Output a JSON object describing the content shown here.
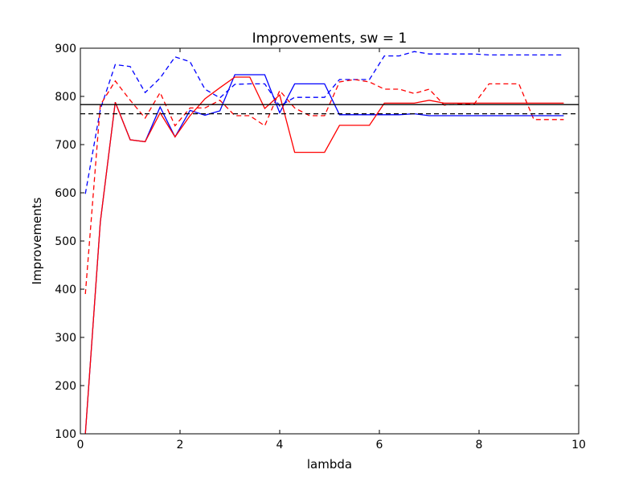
{
  "chart_data": {
    "type": "line",
    "title": "Improvements, sw = 1",
    "xlabel": "lambda",
    "ylabel": "Improvements",
    "xlim": [
      0,
      10
    ],
    "ylim": [
      100,
      900
    ],
    "xticks": [
      "0",
      "2",
      "4",
      "6",
      "8",
      "10"
    ],
    "yticks": [
      "100",
      "200",
      "300",
      "400",
      "500",
      "600",
      "700",
      "800",
      "900"
    ],
    "grid": false,
    "x": [
      0.1,
      0.4,
      0.7,
      1.0,
      1.3,
      1.6,
      1.9,
      2.2,
      2.5,
      2.8,
      3.1,
      3.4,
      3.7,
      4.0,
      4.3,
      4.6,
      4.9,
      5.2,
      5.5,
      5.8,
      6.1,
      6.4,
      6.7,
      7.0,
      7.3,
      7.6,
      7.9,
      8.2,
      8.5,
      8.8,
      9.1,
      9.4,
      9.7
    ],
    "series": [
      {
        "color": "#0000ff",
        "linestyle": "dashed",
        "values": [
          598,
          773,
          866,
          862,
          808,
          838,
          882,
          872,
          815,
          797,
          825,
          826,
          826,
          780,
          798,
          798,
          798,
          835,
          835,
          835,
          884,
          884,
          893,
          888,
          888,
          888,
          888,
          886,
          886,
          886,
          886,
          886,
          886
        ]
      },
      {
        "color": "#ff0000",
        "linestyle": "dashed",
        "values": [
          390,
          782,
          832,
          792,
          755,
          808,
          739,
          776,
          776,
          792,
          760,
          760,
          739,
          812,
          776,
          760,
          760,
          830,
          835,
          830,
          815,
          815,
          806,
          815,
          782,
          784,
          784,
          826,
          826,
          826,
          752,
          752,
          752
        ]
      },
      {
        "color": "#0000ff",
        "linestyle": "solid",
        "values": [
          100,
          539,
          788,
          710,
          706,
          778,
          716,
          771,
          761,
          770,
          845,
          845,
          845,
          766,
          826,
          826,
          826,
          762,
          762,
          762,
          762,
          762,
          764,
          760,
          760,
          760,
          760,
          760,
          760,
          760,
          760,
          760,
          760
        ]
      },
      {
        "color": "#ff0000",
        "linestyle": "solid",
        "values": [
          100,
          539,
          788,
          710,
          706,
          766,
          716,
          760,
          795,
          818,
          840,
          840,
          775,
          803,
          684,
          684,
          684,
          740,
          740,
          740,
          786,
          786,
          786,
          792,
          786,
          786,
          786,
          786,
          786,
          786,
          786,
          786,
          786
        ]
      }
    ],
    "hlines": [
      {
        "y": 783,
        "color": "#000000",
        "linestyle": "solid"
      },
      {
        "y": 764,
        "color": "#000000",
        "linestyle": "dashed"
      }
    ]
  }
}
